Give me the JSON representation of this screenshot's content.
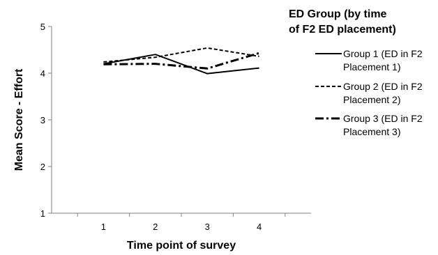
{
  "chart_data": {
    "type": "line",
    "title": "",
    "xlabel": "Time point of survey",
    "ylabel": "Mean Score - Effort",
    "x": [
      1,
      2,
      3,
      4
    ],
    "xticks": [
      "1",
      "2",
      "3",
      "4"
    ],
    "xlim": [
      0,
      5
    ],
    "ylim": [
      1,
      5
    ],
    "yticks": [
      "1",
      "2",
      "3",
      "4",
      "5"
    ],
    "grid": false,
    "legend": {
      "title_lines": [
        "ED Group (by time",
        "of F2 ED placement)"
      ],
      "placement": "right"
    },
    "series": [
      {
        "name": "Group 1 (ED in F2 Placement 1)",
        "label_lines": [
          "Group 1 (ED in F2",
          "Placement 1)"
        ],
        "style": "solid",
        "values": [
          4.2,
          4.4,
          3.99,
          4.11
        ]
      },
      {
        "name": "Group 2 (ED in F2 Placement 2)",
        "label_lines": [
          "Group 2 (ED in F2",
          "Placement 2)"
        ],
        "style": "dashed",
        "values": [
          4.24,
          4.34,
          4.54,
          4.36
        ]
      },
      {
        "name": "Group 3 (ED in F2 Placement 3)",
        "label_lines": [
          "Group 3 (ED in F2",
          "Placement 3)"
        ],
        "style": "dashdot",
        "values": [
          4.19,
          4.2,
          4.1,
          4.43
        ]
      }
    ],
    "colors": {
      "line": "#000000",
      "axis": "#808080",
      "background": "#ffffff"
    }
  }
}
